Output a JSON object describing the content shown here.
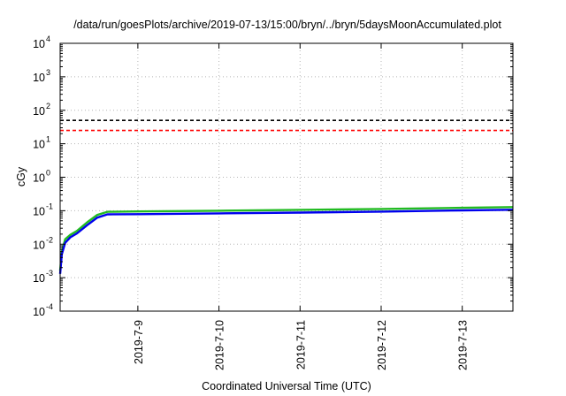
{
  "chart_data": {
    "type": "line",
    "title": "/data/run/goesPlots/archive/2019-07-13/15:00/bryn/../bryn/5daysMoonAccumulated.plot",
    "xlabel": "Coordinated Universal Time (UTC)",
    "ylabel": "cGy",
    "x_unit": "days",
    "x_range": [
      "2019-07-08 01:00",
      "2019-07-13 15:00"
    ],
    "x_ticks": [
      "2019-7-9",
      "2019-7-10",
      "2019-7-11",
      "2019-7-12",
      "2019-7-13"
    ],
    "y_scale": "log",
    "y_range": [
      0.0001,
      10000
    ],
    "y_ticks": [
      {
        "base": "10",
        "exp": "-4"
      },
      {
        "base": "10",
        "exp": "-3"
      },
      {
        "base": "10",
        "exp": "-2"
      },
      {
        "base": "10",
        "exp": "-1"
      },
      {
        "base": "10",
        "exp": "0"
      },
      {
        "base": "10",
        "exp": "1"
      },
      {
        "base": "10",
        "exp": "2"
      },
      {
        "base": "10",
        "exp": "3"
      },
      {
        "base": "10",
        "exp": "4"
      }
    ],
    "grid": true,
    "threshold_lines": [
      {
        "value": 50,
        "color": "#000000",
        "style": "dashed"
      },
      {
        "value": 25,
        "color": "#ff0000",
        "style": "dashed"
      }
    ],
    "series": [
      {
        "color": "#22bb22",
        "x": [
          "2019-07-08 01:00",
          "2019-07-08 01:30",
          "2019-07-08 02:30",
          "2019-07-08 04:00",
          "2019-07-08 06:00",
          "2019-07-08 09:00",
          "2019-07-08 12:00",
          "2019-07-08 15:00",
          "2019-07-09 00:00",
          "2019-07-10 00:00",
          "2019-07-11 00:00",
          "2019-07-12 00:00",
          "2019-07-13 00:00",
          "2019-07-13 15:00"
        ],
        "values": [
          0.0016,
          0.006,
          0.014,
          0.019,
          0.025,
          0.045,
          0.075,
          0.093,
          0.095,
          0.1,
          0.106,
          0.113,
          0.122,
          0.128
        ]
      },
      {
        "color": "#0000ee",
        "x": [
          "2019-07-08 01:00",
          "2019-07-08 01:30",
          "2019-07-08 02:30",
          "2019-07-08 04:00",
          "2019-07-08 06:00",
          "2019-07-08 09:00",
          "2019-07-08 12:00",
          "2019-07-08 15:00",
          "2019-07-09 00:00",
          "2019-07-10 00:00",
          "2019-07-11 00:00",
          "2019-07-12 00:00",
          "2019-07-13 00:00",
          "2019-07-13 15:00"
        ],
        "values": [
          0.0013,
          0.005,
          0.011,
          0.016,
          0.021,
          0.037,
          0.062,
          0.078,
          0.079,
          0.083,
          0.088,
          0.094,
          0.102,
          0.107
        ]
      }
    ]
  }
}
